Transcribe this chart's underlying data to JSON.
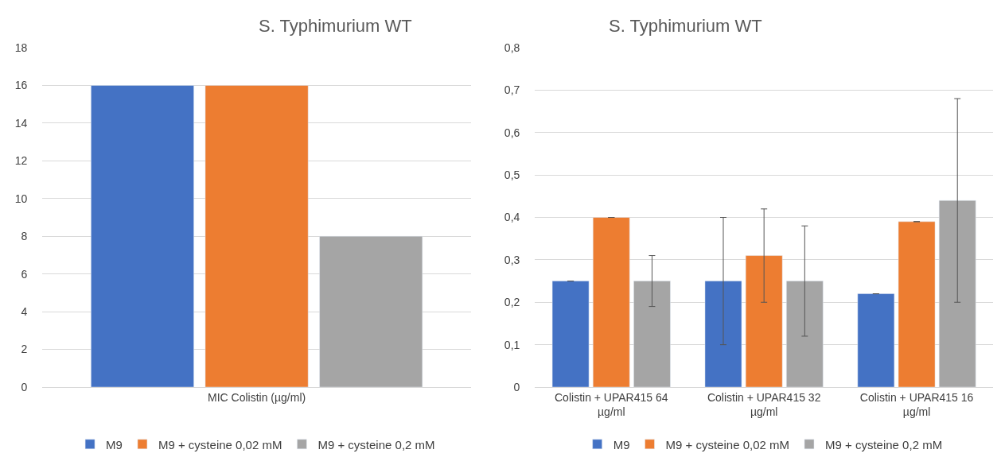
{
  "chart_data": [
    {
      "type": "bar",
      "title": "S. Typhimurium WT",
      "categories": [
        "MIC Colistin (µg/ml)"
      ],
      "series": [
        {
          "name": "M9",
          "color": "#4472c4",
          "values": [
            16
          ]
        },
        {
          "name": "M9 + cysteine 0,02 mM",
          "color": "#ed7d31",
          "values": [
            16
          ]
        },
        {
          "name": "M9 + cysteine 0,2 mM",
          "color": "#a5a5a5",
          "values": [
            8
          ]
        }
      ],
      "ylim": [
        0,
        18
      ],
      "yticks": [
        0,
        2,
        4,
        6,
        8,
        10,
        12,
        14,
        16,
        18
      ],
      "grid": "y",
      "legend": "bottom"
    },
    {
      "type": "bar",
      "title": "S. Typhimurium WT",
      "categories": [
        "Colistin + UPAR415 64 µg/ml",
        "Colistin + UPAR415 32 µg/ml",
        "Colistin + UPAR415 16 µg/ml"
      ],
      "series": [
        {
          "name": "M9",
          "color": "#4472c4",
          "values": [
            0.25,
            0.25,
            0.22
          ],
          "errors": [
            0,
            0.15,
            0
          ]
        },
        {
          "name": "M9 + cysteine 0,02 mM",
          "color": "#ed7d31",
          "values": [
            0.4,
            0.31,
            0.39
          ],
          "errors": [
            0,
            [
              0.2,
              0.42
            ],
            0
          ]
        },
        {
          "name": "M9 + cysteine 0,2 mM",
          "color": "#a5a5a5",
          "values": [
            0.25,
            0.25,
            0.44
          ],
          "errors": [
            [
              0.19,
              0.31
            ],
            [
              0.12,
              0.38
            ],
            [
              0.2,
              0.68
            ]
          ]
        }
      ],
      "ylim": [
        0,
        0.8
      ],
      "yticks": [
        0,
        {
          "value": 0.1,
          "label": "0,1"
        },
        {
          "value": 0.2,
          "label": "0,2"
        },
        {
          "value": 0.3,
          "label": "0,3"
        },
        {
          "value": 0.4,
          "label": "0,4"
        },
        {
          "value": 0.5,
          "label": "0,5"
        },
        {
          "value": 0.6,
          "label": "0,6"
        },
        {
          "value": 0.7,
          "label": "0,7"
        },
        {
          "value": 0.8,
          "label": "0,8"
        }
      ],
      "grid": "y",
      "legend": "bottom"
    }
  ]
}
